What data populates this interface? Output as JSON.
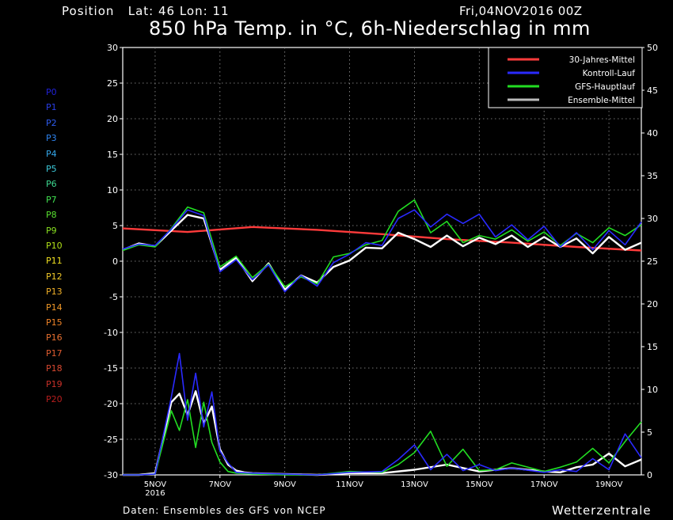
{
  "header": {
    "position_label": "Position",
    "lat_label": "Lat: 46",
    "lon_label": "Lon: 11",
    "run_label": "Fri,04NOV2016 00Z",
    "title": "850 hPa Temp. in °C, 6h-Niederschlag in mm"
  },
  "footer": {
    "source": "Daten: Ensembles des GFS von NCEP",
    "brand": "Wetterzentrale"
  },
  "members": [
    {
      "label": "P0",
      "color": "#2020d8"
    },
    {
      "label": "P1",
      "color": "#2a3ee8"
    },
    {
      "label": "P2",
      "color": "#2e5cf0"
    },
    {
      "label": "P3",
      "color": "#2e84f0"
    },
    {
      "label": "P4",
      "color": "#34a8ec"
    },
    {
      "label": "P5",
      "color": "#3cc8d8"
    },
    {
      "label": "P6",
      "color": "#3cd890"
    },
    {
      "label": "P7",
      "color": "#40e050"
    },
    {
      "label": "P8",
      "color": "#58e030"
    },
    {
      "label": "P9",
      "color": "#88e020"
    },
    {
      "label": "P10",
      "color": "#b0e018"
    },
    {
      "label": "P11",
      "color": "#f0e020"
    },
    {
      "label": "P12",
      "color": "#f0c828"
    },
    {
      "label": "P13",
      "color": "#f0b028"
    },
    {
      "label": "P14",
      "color": "#f09828"
    },
    {
      "label": "P15",
      "color": "#f08428"
    },
    {
      "label": "P16",
      "color": "#e87030"
    },
    {
      "label": "P17",
      "color": "#e05c30"
    },
    {
      "label": "P18",
      "color": "#d84830"
    },
    {
      "label": "P19",
      "color": "#c83028"
    },
    {
      "label": "P20",
      "color": "#b81e1e"
    }
  ],
  "chart_data": {
    "type": "line",
    "title": "850 hPa Temp. in °C, 6h-Niederschlag in mm",
    "x_unit": "day of November 2016 (00Z)",
    "xlim": [
      4.0,
      20.0
    ],
    "x_tick_values": [
      5,
      7,
      9,
      11,
      13,
      15,
      17,
      19
    ],
    "x_tick_labels": [
      "5NOV",
      "7NOV",
      "9NOV",
      "11NOV",
      "13NOV",
      "15NOV",
      "17NOV",
      "19NOV"
    ],
    "x_year_label": "2016",
    "y_left": {
      "label": "850 hPa Temp. (°C)",
      "lim": [
        -30,
        30
      ],
      "ticks": [
        30,
        25,
        20,
        15,
        10,
        5,
        0,
        -5,
        -10,
        -15,
        -20,
        -25,
        -30
      ]
    },
    "y_right": {
      "label": "6h-Niederschlag (mm)",
      "lim": [
        0,
        50
      ],
      "ticks": [
        50,
        45,
        40,
        35,
        30,
        25,
        20,
        15,
        10,
        5,
        0
      ]
    },
    "grid": true,
    "legend_position": "top-right",
    "legend": [
      {
        "name": "30-Jahres-Mittel",
        "color": "#ff3b3b"
      },
      {
        "name": "Kontroll-Lauf",
        "color": "#2a2aff"
      },
      {
        "name": "GFS-Hauptlauf",
        "color": "#22dd22"
      },
      {
        "name": "Ensemble-Mittel",
        "color": "#bbbbbb"
      }
    ],
    "temperature_series": [
      {
        "name": "30-Jahres-Mittel",
        "color": "#ff3b3b",
        "width": 2.4,
        "x": [
          4.0,
          6.0,
          8.0,
          10.0,
          12.0,
          14.0,
          16.0,
          18.0,
          20.0
        ],
        "y": [
          4.6,
          4.1,
          4.8,
          4.4,
          3.8,
          3.1,
          2.6,
          2.0,
          1.5
        ]
      },
      {
        "name": "Ensemble-Mittel",
        "color": "#ffffff",
        "width": 2.4,
        "x": [
          4.0,
          4.5,
          5.0,
          5.5,
          6.0,
          6.5,
          7.0,
          7.5,
          8.0,
          8.5,
          9.0,
          9.5,
          10.0,
          10.5,
          11.0,
          11.5,
          12.0,
          12.5,
          13.0,
          13.5,
          14.0,
          14.5,
          15.0,
          15.5,
          16.0,
          16.5,
          17.0,
          17.5,
          18.0,
          18.5,
          19.0,
          19.5,
          20.0
        ],
        "y": [
          1.6,
          2.5,
          2.1,
          4.3,
          6.5,
          6.0,
          -1.2,
          0.5,
          -2.8,
          -0.3,
          -4.0,
          -2.0,
          -3.0,
          -0.8,
          0.1,
          1.9,
          1.8,
          4.0,
          3.1,
          2.0,
          3.6,
          2.1,
          3.3,
          2.4,
          3.6,
          2.0,
          3.4,
          2.0,
          3.2,
          1.1,
          3.4,
          1.6,
          2.6
        ]
      },
      {
        "name": "GFS-Hauptlauf",
        "color": "#22dd22",
        "width": 1.6,
        "x": [
          4.0,
          4.5,
          5.0,
          5.5,
          6.0,
          6.5,
          7.0,
          7.5,
          8.0,
          8.5,
          9.0,
          9.5,
          10.0,
          10.5,
          11.0,
          11.5,
          12.0,
          12.5,
          13.0,
          13.5,
          14.0,
          14.5,
          15.0,
          15.5,
          16.0,
          16.5,
          17.0,
          17.5,
          18.0,
          18.5,
          19.0,
          19.5,
          20.0
        ],
        "y": [
          1.5,
          2.3,
          2.0,
          4.6,
          7.6,
          6.8,
          -0.8,
          0.7,
          -2.3,
          -0.4,
          -3.6,
          -2.2,
          -3.2,
          0.6,
          1.1,
          2.3,
          2.9,
          7.0,
          8.6,
          4.0,
          5.6,
          2.6,
          3.6,
          3.1,
          4.4,
          2.8,
          4.1,
          2.2,
          3.9,
          2.6,
          4.7,
          3.6,
          5.1
        ]
      },
      {
        "name": "Kontroll-Lauf",
        "color": "#2a2aff",
        "width": 1.6,
        "x": [
          4.0,
          4.5,
          5.0,
          5.5,
          6.0,
          6.5,
          7.0,
          7.5,
          8.0,
          8.5,
          9.0,
          9.5,
          10.0,
          10.5,
          11.0,
          11.5,
          12.0,
          12.5,
          13.0,
          13.5,
          14.0,
          14.5,
          15.0,
          15.5,
          16.0,
          16.5,
          17.0,
          17.5,
          18.0,
          18.5,
          19.0,
          19.5,
          20.0
        ],
        "y": [
          1.7,
          2.4,
          2.2,
          4.5,
          7.2,
          6.4,
          -1.5,
          0.2,
          -2.6,
          -0.5,
          -4.3,
          -2.0,
          -3.5,
          -0.2,
          1.0,
          2.6,
          2.2,
          6.0,
          7.2,
          4.8,
          6.6,
          5.3,
          6.6,
          3.4,
          5.1,
          3.0,
          4.9,
          2.0,
          4.0,
          1.6,
          4.3,
          2.3,
          5.5
        ]
      }
    ],
    "precipitation_series": [
      {
        "name": "Ensemble-Mittel",
        "color": "#ffffff",
        "width": 2.4,
        "x": [
          4.0,
          4.5,
          5.0,
          5.5,
          5.75,
          6.0,
          6.25,
          6.5,
          6.75,
          7.0,
          7.25,
          7.5,
          7.75,
          8.0,
          9.0,
          10.0,
          11.0,
          12.0,
          13.0,
          14.0,
          15.0,
          16.0,
          17.0,
          17.5,
          18.0,
          18.5,
          19.0,
          19.5,
          20.0
        ],
        "y": [
          0.0,
          0.0,
          0.2,
          8.5,
          9.5,
          7.0,
          9.8,
          6.0,
          8.0,
          3.0,
          1.2,
          0.5,
          0.3,
          0.2,
          0.1,
          0.0,
          0.2,
          0.2,
          0.6,
          1.2,
          0.4,
          0.8,
          0.4,
          0.3,
          0.9,
          1.2,
          2.5,
          1.0,
          1.8
        ]
      },
      {
        "name": "GFS-Hauptlauf",
        "color": "#22dd22",
        "width": 1.6,
        "x": [
          4.0,
          4.5,
          5.0,
          5.5,
          5.75,
          6.0,
          6.25,
          6.5,
          6.75,
          7.0,
          7.25,
          7.5,
          8.0,
          9.0,
          10.0,
          11.0,
          12.0,
          12.5,
          13.0,
          13.5,
          14.0,
          14.5,
          15.0,
          15.5,
          16.0,
          17.0,
          17.5,
          18.0,
          18.5,
          19.0,
          19.5,
          20.0
        ],
        "y": [
          0.0,
          0.0,
          0.1,
          7.5,
          5.2,
          8.8,
          3.2,
          8.5,
          3.8,
          1.5,
          0.4,
          0.2,
          0.1,
          0.0,
          0.0,
          0.4,
          0.3,
          1.2,
          2.6,
          5.1,
          1.0,
          3.0,
          0.5,
          0.6,
          1.4,
          0.4,
          0.9,
          1.5,
          3.1,
          1.4,
          3.9,
          6.2
        ]
      },
      {
        "name": "Kontroll-Lauf",
        "color": "#2a2aff",
        "width": 1.6,
        "x": [
          4.0,
          4.5,
          5.0,
          5.5,
          5.75,
          6.0,
          6.25,
          6.5,
          6.75,
          7.0,
          7.25,
          7.5,
          8.0,
          9.0,
          10.0,
          11.0,
          12.0,
          12.5,
          13.0,
          13.5,
          14.0,
          14.5,
          15.0,
          15.5,
          16.0,
          17.0,
          17.5,
          18.0,
          18.5,
          19.0,
          19.5,
          20.0
        ],
        "y": [
          0.0,
          0.0,
          0.1,
          9.1,
          14.2,
          6.4,
          11.9,
          5.6,
          9.7,
          2.8,
          1.4,
          0.3,
          0.2,
          0.1,
          0.0,
          0.3,
          0.4,
          1.8,
          3.5,
          0.6,
          2.4,
          0.5,
          1.2,
          0.5,
          0.8,
          0.3,
          0.6,
          0.4,
          1.9,
          0.6,
          4.8,
          2.0
        ]
      }
    ]
  }
}
